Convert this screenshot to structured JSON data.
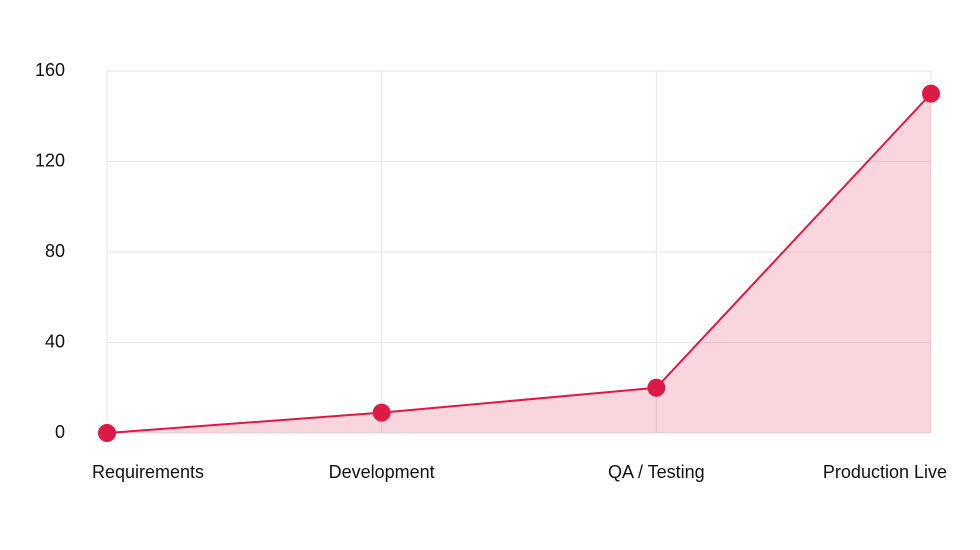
{
  "chart_data": {
    "type": "area",
    "categories": [
      "Requirements",
      "Development",
      "QA / Testing",
      "Production Live"
    ],
    "series": [
      {
        "values": [
          0,
          9,
          20,
          150
        ],
        "color": "#dc1a45"
      }
    ],
    "ylim": [
      0,
      160
    ],
    "yticks": [
      0,
      40,
      80,
      120,
      160
    ],
    "grid": true
  }
}
